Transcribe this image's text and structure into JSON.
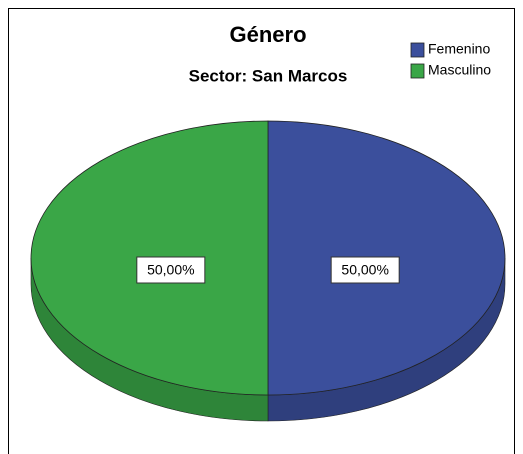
{
  "chart_data": {
    "type": "pie",
    "title": "Género",
    "subtitle": "Sector: San Marcos",
    "categories": [
      "Femenino",
      "Masculino"
    ],
    "values": [
      50,
      50
    ],
    "value_labels": [
      "50,00%",
      "50,00%"
    ],
    "colors": [
      "#3b4f9c",
      "#3aa647"
    ],
    "legend": "top-right"
  }
}
